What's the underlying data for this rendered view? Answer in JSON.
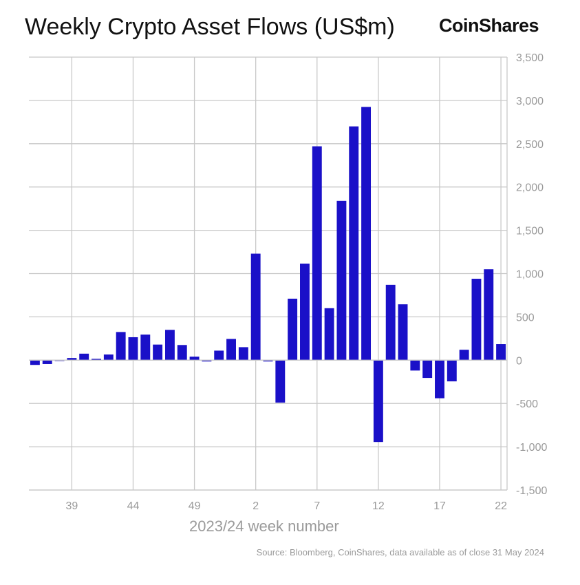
{
  "header": {
    "title": "Weekly Crypto Asset Flows (US$m)",
    "brand": "CoinShares"
  },
  "footer": {
    "source": "Source: Bloomberg, CoinShares, data available as of close 31 May 2024"
  },
  "colors": {
    "bar": "#1a10c8",
    "grid": "#c8c8c8",
    "tick_text": "#9a9a9a",
    "title": "#111111"
  },
  "chart_data": {
    "type": "bar",
    "title": "Weekly Crypto Asset Flows (US$m)",
    "xlabel": "2023/24 week number",
    "ylabel": "",
    "ylim": [
      -1500,
      3500
    ],
    "y_ticks": [
      "3,500",
      "3,000",
      "2,500",
      "2,000",
      "1,500",
      "1,000",
      "500",
      "0",
      "-500",
      "-1,000",
      "-1,500"
    ],
    "y_tick_values": [
      3500,
      3000,
      2500,
      2000,
      1500,
      1000,
      500,
      0,
      -500,
      -1000,
      -1500
    ],
    "x_ticks": [
      "39",
      "44",
      "49",
      "2",
      "7",
      "12",
      "17",
      "22"
    ],
    "x_tick_bar_index": [
      3,
      8,
      13,
      18,
      23,
      28,
      33,
      38
    ],
    "grid": true,
    "y_axis_position": "right",
    "categories": [
      "36",
      "37",
      "38",
      "39",
      "40",
      "41",
      "42",
      "43",
      "44",
      "45",
      "46",
      "47",
      "48",
      "49",
      "50",
      "51",
      "52",
      "1",
      "2",
      "3",
      "4",
      "5",
      "6",
      "7",
      "8",
      "9",
      "10",
      "11",
      "12",
      "13",
      "14",
      "15",
      "16",
      "17",
      "18",
      "19",
      "20",
      "21",
      "22"
    ],
    "values": [
      -55,
      -45,
      -10,
      25,
      75,
      15,
      65,
      325,
      265,
      295,
      180,
      350,
      175,
      40,
      -15,
      110,
      245,
      150,
      1230,
      -15,
      -490,
      710,
      1115,
      2470,
      600,
      1840,
      2700,
      2925,
      -945,
      870,
      645,
      -120,
      -205,
      -440,
      -245,
      120,
      940,
      1050,
      185
    ]
  }
}
